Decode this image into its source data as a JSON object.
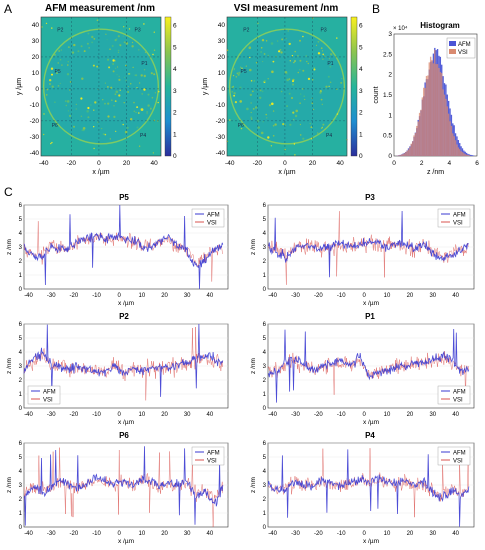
{
  "panel_letters": [
    "A",
    "B",
    "C"
  ],
  "chart_data": [
    {
      "id": "afm-map",
      "type": "heatmap",
      "title": "AFM measurement /nm",
      "xlabel": "x /µm",
      "ylabel": "y /µm",
      "xlim": [
        -42,
        45
      ],
      "ylim": [
        -42,
        45
      ],
      "xticks": [
        "-40",
        "-20",
        "0",
        "20",
        "40"
      ],
      "yticks": [
        "40",
        "30",
        "20",
        "10",
        "0",
        "-10",
        "-20",
        "-30",
        "-40"
      ],
      "colorbar": {
        "ticks": [
          "6",
          "5",
          "4",
          "3",
          "2",
          "1",
          "0"
        ],
        "min": 0,
        "max": 6.4,
        "colors": [
          "#2b2e9c",
          "#1f8ed0",
          "#27b59a",
          "#8cc44f",
          "#f9f01e"
        ]
      },
      "region_labels": [
        "P1",
        "P2",
        "P3",
        "P4",
        "P5",
        "P6"
      ],
      "mean_value": 3
    },
    {
      "id": "vsi-map",
      "type": "heatmap",
      "title": "VSI measurement /nm",
      "xlabel": "x /µm",
      "ylabel": "y /µm",
      "xlim": [
        -42,
        45
      ],
      "ylim": [
        -42,
        45
      ],
      "xticks": [
        "-40",
        "-20",
        "0",
        "20",
        "40"
      ],
      "yticks": [
        "40",
        "30",
        "20",
        "10",
        "0",
        "-10",
        "-20",
        "-30",
        "-40"
      ],
      "colorbar": {
        "ticks": [
          "6",
          "5",
          "4",
          "3",
          "2",
          "1",
          "0"
        ],
        "min": 0,
        "max": 6.4,
        "colors": [
          "#2b2e9c",
          "#1f8ed0",
          "#27b59a",
          "#8cc44f",
          "#f9f01e"
        ]
      },
      "region_labels": [
        "P1",
        "P2",
        "P3",
        "P4",
        "P5",
        "P6"
      ],
      "mean_value": 3
    },
    {
      "id": "histogram",
      "type": "bar",
      "title": "Histogram",
      "exponent_label": "× 10⁴",
      "xlabel": "z /nm",
      "ylabel": "count",
      "xlim": [
        0,
        6
      ],
      "ylim": [
        0,
        3
      ],
      "xticks": [
        "0",
        "2",
        "4",
        "6"
      ],
      "yticks": [
        "3",
        "2.5",
        "2",
        "1.5",
        "1",
        "0.5",
        "0"
      ],
      "series": [
        {
          "name": "AFM",
          "color": "#4b55d6",
          "mean": 3.0,
          "sd": 0.85,
          "peak": 2.5
        },
        {
          "name": "VSI",
          "color": "#d98a70",
          "mean": 2.9,
          "sd": 0.8,
          "peak": 2.45
        }
      ]
    },
    {
      "id": "p5",
      "type": "line",
      "title": "P5",
      "xlabel": "x /µm",
      "ylabel": "z /nm",
      "xlim": [
        -42,
        48
      ],
      "ylim": [
        0,
        6
      ],
      "xticks": [
        "-40",
        "-30",
        "-20",
        "-10",
        "0",
        "10",
        "20",
        "30",
        "40"
      ],
      "yticks": [
        "6",
        "5",
        "4",
        "3",
        "2",
        "1",
        "0"
      ],
      "legend": [
        "AFM",
        "VSI"
      ],
      "legend_position": "top-right",
      "series": [
        {
          "name": "AFM",
          "color": "#3a3ad2",
          "x": [
            -42,
            -38,
            -34,
            -30,
            -26,
            -22,
            -18,
            -14,
            -10,
            -6,
            -2,
            2,
            6,
            10,
            14,
            18,
            22,
            26,
            30,
            34,
            38,
            42,
            46
          ],
          "y": [
            3.1,
            2.4,
            2.2,
            3.0,
            2.8,
            2.9,
            3.4,
            3.6,
            3.8,
            3.6,
            3.8,
            3.6,
            3.5,
            3.0,
            2.9,
            3.4,
            3.7,
            3.1,
            2.7,
            1.5,
            2.1,
            2.8,
            3.1
          ]
        },
        {
          "name": "VSI",
          "color": "#d9534f",
          "x": [
            -42,
            -38,
            -34,
            -30,
            -26,
            -22,
            -18,
            -14,
            -10,
            -6,
            -2,
            2,
            6,
            10,
            14,
            18,
            22,
            26,
            30,
            34,
            38,
            42,
            46
          ],
          "y": [
            3.0,
            2.5,
            2.4,
            3.1,
            2.9,
            3.0,
            3.3,
            3.5,
            3.7,
            3.5,
            3.7,
            3.5,
            3.4,
            3.1,
            3.0,
            3.3,
            3.5,
            3.0,
            2.8,
            1.8,
            2.3,
            2.9,
            3.0
          ]
        }
      ]
    },
    {
      "id": "p3",
      "type": "line",
      "title": "P3",
      "xlabel": "x /µm",
      "ylabel": "z /nm",
      "xlim": [
        -42,
        48
      ],
      "ylim": [
        0,
        6
      ],
      "xticks": [
        "-40",
        "-30",
        "-20",
        "-10",
        "0",
        "10",
        "20",
        "30",
        "40"
      ],
      "yticks": [
        "6",
        "5",
        "4",
        "3",
        "2",
        "1",
        "0"
      ],
      "legend": [
        "AFM",
        "VSI"
      ],
      "legend_position": "top-right",
      "series": [
        {
          "name": "AFM",
          "color": "#3a3ad2",
          "x": [
            -42,
            -38,
            -34,
            -30,
            -26,
            -22,
            -18,
            -14,
            -10,
            -6,
            -2,
            2,
            6,
            10,
            14,
            18,
            22,
            26,
            30,
            34,
            38,
            42,
            46
          ],
          "y": [
            3.0,
            2.6,
            2.3,
            2.8,
            3.2,
            3.0,
            2.9,
            3.1,
            3.3,
            3.0,
            3.2,
            3.4,
            3.2,
            3.0,
            3.3,
            3.1,
            2.9,
            3.2,
            2.6,
            2.1,
            2.4,
            2.8,
            3.0
          ]
        },
        {
          "name": "VSI",
          "color": "#d9534f",
          "x": [
            -42,
            -38,
            -34,
            -30,
            -26,
            -22,
            -18,
            -14,
            -10,
            -6,
            -2,
            2,
            6,
            10,
            14,
            18,
            22,
            26,
            30,
            34,
            38,
            42,
            46
          ],
          "y": [
            3.0,
            2.7,
            2.5,
            2.9,
            3.1,
            3.0,
            2.9,
            3.0,
            3.2,
            3.0,
            3.1,
            3.3,
            3.1,
            3.0,
            3.2,
            3.0,
            2.9,
            3.1,
            2.7,
            2.3,
            2.5,
            2.8,
            2.9
          ]
        }
      ]
    },
    {
      "id": "p2",
      "type": "line",
      "title": "P2",
      "xlabel": "x /µm",
      "ylabel": "z /nm",
      "xlim": [
        -42,
        48
      ],
      "ylim": [
        0,
        6
      ],
      "xticks": [
        "-40",
        "-30",
        "-20",
        "-10",
        "0",
        "10",
        "20",
        "30",
        "40"
      ],
      "yticks": [
        "6",
        "5",
        "4",
        "3",
        "2",
        "1",
        "0"
      ],
      "legend": [
        "AFM",
        "VSI"
      ],
      "legend_position": "bottom-left",
      "series": [
        {
          "name": "AFM",
          "color": "#3a3ad2",
          "x": [
            -42,
            -38,
            -34,
            -30,
            -26,
            -22,
            -18,
            -14,
            -10,
            -6,
            -2,
            2,
            6,
            10,
            14,
            18,
            22,
            26,
            30,
            34,
            38,
            42,
            46
          ],
          "y": [
            2.6,
            3.5,
            3.9,
            3.3,
            3.0,
            2.8,
            2.9,
            2.7,
            2.6,
            2.5,
            3.1,
            2.4,
            2.8,
            2.6,
            2.8,
            3.0,
            2.9,
            3.1,
            3.3,
            3.6,
            3.8,
            3.5,
            3.1
          ]
        },
        {
          "name": "VSI",
          "color": "#d9534f",
          "x": [
            -42,
            -38,
            -34,
            -30,
            -26,
            -22,
            -18,
            -14,
            -10,
            -6,
            -2,
            2,
            6,
            10,
            14,
            18,
            22,
            26,
            30,
            34,
            38,
            42,
            46
          ],
          "y": [
            2.7,
            3.4,
            3.7,
            3.2,
            3.0,
            2.8,
            2.8,
            2.7,
            2.6,
            2.6,
            3.0,
            2.5,
            2.8,
            2.7,
            2.8,
            2.9,
            2.9,
            3.0,
            3.2,
            3.4,
            3.6,
            3.4,
            3.0
          ]
        }
      ]
    },
    {
      "id": "p1",
      "type": "line",
      "title": "P1",
      "xlabel": "x /µm",
      "ylabel": "z /nm",
      "xlim": [
        -42,
        48
      ],
      "ylim": [
        0,
        6
      ],
      "xticks": [
        "-40",
        "-30",
        "-20",
        "-10",
        "0",
        "10",
        "20",
        "30",
        "40"
      ],
      "yticks": [
        "6",
        "5",
        "4",
        "3",
        "2",
        "1",
        "0"
      ],
      "legend": [
        "AFM",
        "VSI"
      ],
      "legend_position": "bottom-right",
      "series": [
        {
          "name": "AFM",
          "color": "#3a3ad2",
          "x": [
            -42,
            -38,
            -34,
            -30,
            -26,
            -22,
            -18,
            -14,
            -10,
            -6,
            -2,
            2,
            6,
            10,
            14,
            18,
            22,
            26,
            30,
            34,
            38,
            42,
            46
          ],
          "y": [
            2.4,
            2.6,
            3.3,
            3.5,
            3.1,
            2.6,
            3.0,
            3.2,
            3.4,
            3.0,
            3.7,
            2.2,
            2.5,
            2.7,
            2.9,
            3.0,
            3.2,
            3.3,
            3.4,
            3.7,
            3.5,
            2.6,
            2.8
          ]
        },
        {
          "name": "VSI",
          "color": "#d9534f",
          "x": [
            -42,
            -38,
            -34,
            -30,
            -26,
            -22,
            -18,
            -14,
            -10,
            -6,
            -2,
            2,
            6,
            10,
            14,
            18,
            22,
            26,
            30,
            34,
            38,
            42,
            46
          ],
          "y": [
            2.5,
            2.7,
            3.2,
            3.4,
            3.0,
            2.7,
            3.0,
            3.1,
            3.3,
            3.0,
            3.5,
            2.4,
            2.6,
            2.8,
            2.9,
            3.0,
            3.1,
            3.2,
            3.3,
            3.5,
            3.3,
            2.7,
            2.8
          ]
        }
      ]
    },
    {
      "id": "p6",
      "type": "line",
      "title": "P6",
      "xlabel": "x /µm",
      "ylabel": "z /nm",
      "xlim": [
        -42,
        48
      ],
      "ylim": [
        0,
        6
      ],
      "xticks": [
        "-40",
        "-30",
        "-20",
        "-10",
        "0",
        "10",
        "20",
        "30",
        "40"
      ],
      "yticks": [
        "6",
        "5",
        "4",
        "3",
        "2",
        "1",
        "0"
      ],
      "legend": [
        "AFM",
        "VSI"
      ],
      "legend_position": "top-right",
      "series": [
        {
          "name": "AFM",
          "color": "#3a3ad2",
          "x": [
            -42,
            -38,
            -34,
            -30,
            -26,
            -22,
            -18,
            -14,
            -10,
            -6,
            -2,
            2,
            6,
            10,
            14,
            18,
            22,
            26,
            30,
            34,
            38,
            42,
            46
          ],
          "y": [
            2.2,
            2.9,
            2.5,
            2.8,
            3.4,
            3.0,
            2.7,
            3.1,
            3.6,
            3.2,
            3.1,
            3.3,
            3.0,
            3.4,
            3.3,
            2.9,
            3.1,
            3.0,
            3.3,
            2.2,
            2.6,
            1.6,
            2.8
          ]
        },
        {
          "name": "VSI",
          "color": "#d9534f",
          "x": [
            -42,
            -38,
            -34,
            -30,
            -26,
            -22,
            -18,
            -14,
            -10,
            -6,
            -2,
            2,
            6,
            10,
            14,
            18,
            22,
            26,
            30,
            34,
            38,
            42,
            46
          ],
          "y": [
            2.4,
            2.9,
            2.6,
            2.9,
            3.3,
            3.0,
            2.8,
            3.0,
            3.4,
            3.1,
            3.0,
            3.2,
            3.0,
            3.3,
            3.2,
            2.9,
            3.0,
            3.0,
            3.2,
            2.4,
            2.7,
            2.0,
            2.8
          ]
        }
      ]
    },
    {
      "id": "p4",
      "type": "line",
      "title": "P4",
      "xlabel": "x /µm",
      "ylabel": "z /nm",
      "xlim": [
        -42,
        48
      ],
      "ylim": [
        0,
        6
      ],
      "xticks": [
        "-40",
        "-30",
        "-20",
        "-10",
        "0",
        "10",
        "20",
        "30",
        "40"
      ],
      "yticks": [
        "6",
        "5",
        "4",
        "3",
        "2",
        "1",
        "0"
      ],
      "legend": [
        "AFM",
        "VSI"
      ],
      "legend_position": "top-right",
      "series": [
        {
          "name": "AFM",
          "color": "#3a3ad2",
          "x": [
            -42,
            -38,
            -34,
            -30,
            -26,
            -22,
            -18,
            -14,
            -10,
            -6,
            -2,
            2,
            6,
            10,
            14,
            18,
            22,
            26,
            30,
            34,
            38,
            42,
            46
          ],
          "y": [
            3.0,
            2.6,
            2.8,
            3.2,
            2.9,
            3.0,
            3.3,
            3.1,
            3.0,
            3.2,
            3.4,
            3.3,
            3.5,
            3.2,
            3.1,
            3.3,
            2.9,
            3.2,
            2.4,
            2.1,
            2.6,
            2.2,
            2.7
          ]
        },
        {
          "name": "VSI",
          "color": "#d9534f",
          "x": [
            -42,
            -38,
            -34,
            -30,
            -26,
            -22,
            -18,
            -14,
            -10,
            -6,
            -2,
            2,
            6,
            10,
            14,
            18,
            22,
            26,
            30,
            34,
            38,
            42,
            46
          ],
          "y": [
            3.0,
            2.7,
            2.8,
            3.1,
            2.9,
            3.0,
            3.2,
            3.0,
            3.0,
            3.1,
            3.3,
            3.2,
            3.4,
            3.1,
            3.0,
            3.2,
            2.9,
            3.1,
            2.6,
            2.3,
            2.7,
            2.4,
            2.8
          ]
        }
      ]
    }
  ]
}
